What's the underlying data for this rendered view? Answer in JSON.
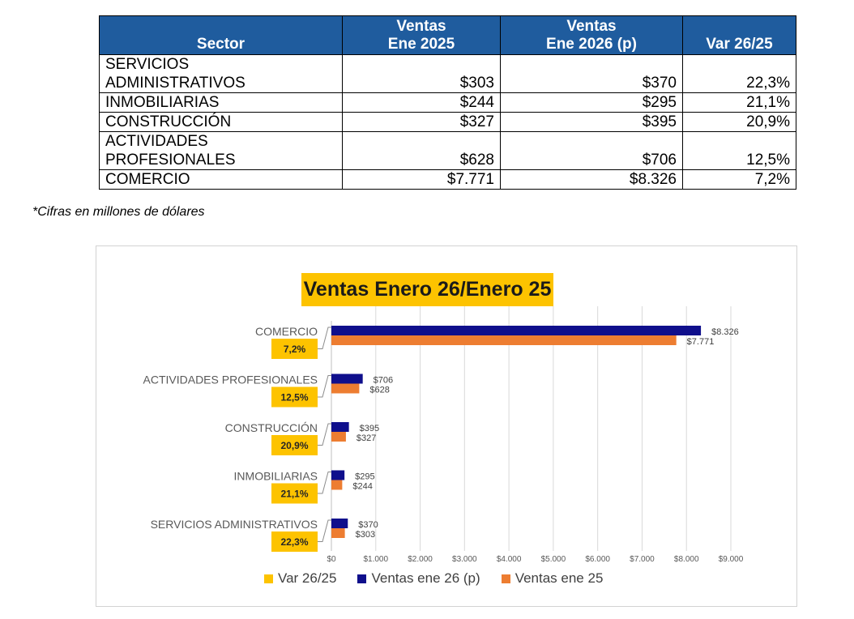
{
  "table": {
    "headers": [
      [
        "",
        "Sector"
      ],
      [
        "Ventas",
        "Ene 2025"
      ],
      [
        "Ventas",
        "Ene 2026 (p)"
      ],
      [
        "",
        "Var 26/25"
      ]
    ],
    "rows": [
      {
        "sector": "SERVICIOS\nADMINISTRATIVOS",
        "v25": "$303",
        "v26": "$370",
        "var": "22,3%"
      },
      {
        "sector": "INMOBILIARIAS",
        "v25": "$244",
        "v26": "$295",
        "var": "21,1%"
      },
      {
        "sector": "CONSTRUCCIÓN",
        "v25": "$327",
        "v26": "$395",
        "var": "20,9%"
      },
      {
        "sector": "ACTIVIDADES\nPROFESIONALES",
        "v25": "$628",
        "v26": "$706",
        "var": "12,5%"
      },
      {
        "sector": "COMERCIO",
        "v25": "$7.771",
        "v26": "$8.326",
        "var": "7,2%"
      }
    ]
  },
  "note": "*Cifras en millones de dólares",
  "chart_data": {
    "type": "bar",
    "orientation": "horizontal",
    "title": "Ventas Enero 26/Enero 25",
    "categories": [
      "COMERCIO",
      "ACTIVIDADES PROFESIONALES",
      "CONSTRUCCIÓN",
      "INMOBILIARIAS",
      "SERVICIOS ADMINISTRATIVOS"
    ],
    "series": [
      {
        "name": "Ventas ene 26 (p)",
        "color": "#0f0f8c",
        "values": [
          8326,
          706,
          395,
          295,
          370
        ],
        "labels": [
          "$8.326",
          "$706",
          "$395",
          "$295",
          "$370"
        ]
      },
      {
        "name": "Ventas ene 25",
        "color": "#ed7d31",
        "values": [
          7771,
          628,
          327,
          244,
          303
        ],
        "labels": [
          "$7.771",
          "$628",
          "$327",
          "$244",
          "$303"
        ]
      }
    ],
    "variation": {
      "name": "Var 26/25",
      "color": "#fdc300",
      "labels": [
        "7,2%",
        "12,5%",
        "20,9%",
        "21,1%",
        "22,3%"
      ]
    },
    "xlim": [
      0,
      9000
    ],
    "xticks": [
      {
        "value": 0,
        "label": "$0"
      },
      {
        "value": 1000,
        "label": "$1.000"
      },
      {
        "value": 2000,
        "label": "$2.000"
      },
      {
        "value": 3000,
        "label": "$3.000"
      },
      {
        "value": 4000,
        "label": "$4.000"
      },
      {
        "value": 5000,
        "label": "$5.000"
      },
      {
        "value": 6000,
        "label": "$6.000"
      },
      {
        "value": 7000,
        "label": "$7.000"
      },
      {
        "value": 8000,
        "label": "$8.000"
      },
      {
        "value": 9000,
        "label": "$9.000"
      }
    ],
    "legend": [
      {
        "name": "Var 26/25",
        "color": "#fdc300"
      },
      {
        "name": "Ventas ene 26 (p)",
        "color": "#0f0f8c"
      },
      {
        "name": "Ventas ene 25",
        "color": "#ed7d31"
      }
    ],
    "legend_position": "bottom",
    "grid": true
  }
}
